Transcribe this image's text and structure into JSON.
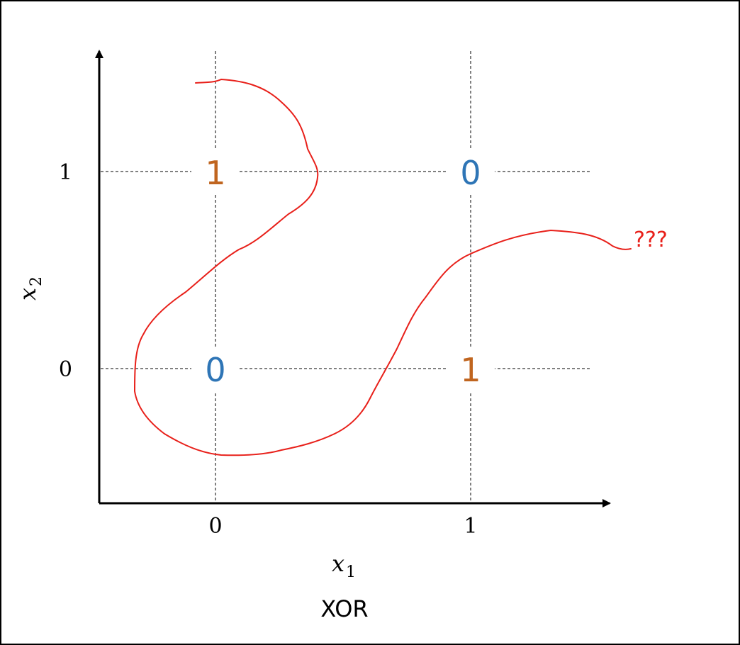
{
  "caption": "XOR",
  "axes": {
    "x_label": "x",
    "x_sub": "1",
    "y_label": "x",
    "y_sub": "2",
    "x_ticks": [
      "0",
      "1"
    ],
    "y_ticks": [
      "0",
      "1"
    ]
  },
  "points": [
    {
      "x": 0,
      "y": 1,
      "label": "1",
      "class": "positive"
    },
    {
      "x": 1,
      "y": 1,
      "label": "0",
      "class": "negative"
    },
    {
      "x": 0,
      "y": 0,
      "label": "0",
      "class": "negative"
    },
    {
      "x": 1,
      "y": 0,
      "label": "1",
      "class": "positive"
    }
  ],
  "boundary_note": "???",
  "colors": {
    "positive": "#c0651f",
    "negative": "#2e75b6",
    "curve": "#e8201a",
    "axis": "#000000"
  }
}
